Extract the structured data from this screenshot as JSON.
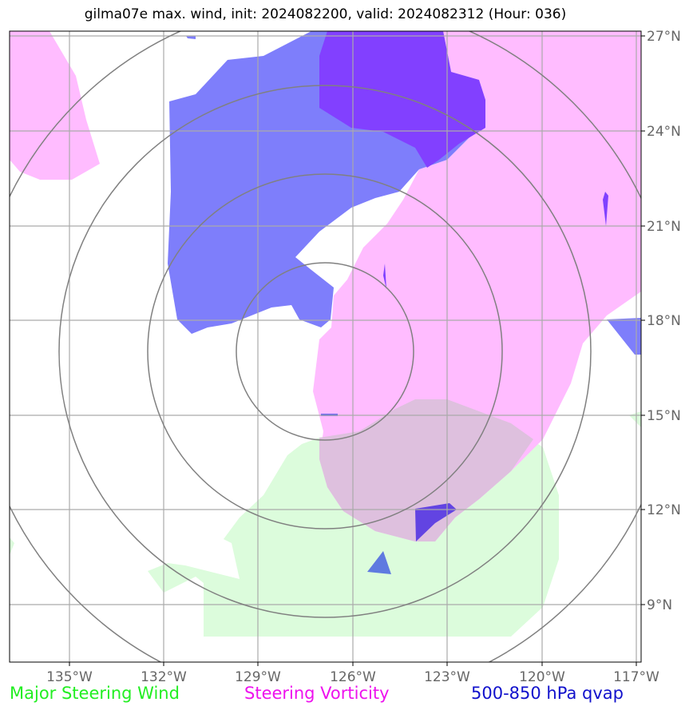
{
  "title": "gilma07e max. wind, init: 2024082200, valid: 2024082312 (Hour: 036)",
  "lat_labels": [
    "27°N",
    "24°N",
    "21°N",
    "18°N",
    "15°N",
    "12°N",
    "9°N"
  ],
  "lon_labels": [
    "135°W",
    "132°W",
    "129°W",
    "126°W",
    "123°W",
    "120°W",
    "117°W"
  ],
  "legend": [
    {
      "label": "Major Steering Wind",
      "color": "#22ee22"
    },
    {
      "label": "Steering Vorticity",
      "color": "#ee11ee"
    },
    {
      "label": "500-850 hPa qvap",
      "color": "#1111cc"
    }
  ],
  "colors": {
    "vorticity": "#ffbcff",
    "wind": "#dcfcdc",
    "qvap": "#7e7efb",
    "qvap_strong": "#8240ff",
    "overlap": "#dec0de",
    "grid": "#aaaaaa",
    "rings": "#808080"
  }
}
